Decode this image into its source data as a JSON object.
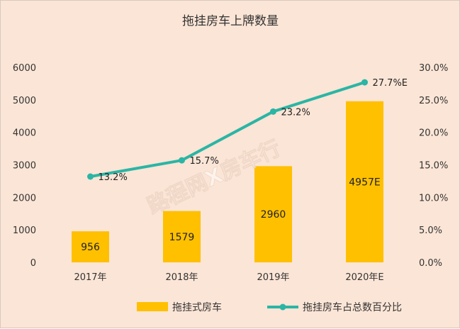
{
  "chart_data": {
    "type": "bar+line",
    "title": "拖挂房车上牌数量",
    "categories": [
      "2017年",
      "2018年",
      "2019年",
      "2020年E"
    ],
    "series": [
      {
        "name": "拖挂式房车",
        "type": "bar",
        "axis": "left",
        "values": [
          956,
          1579,
          2960,
          4957
        ],
        "labels": [
          "956",
          "1579",
          "2960",
          "4957E"
        ],
        "color": "#ffc000"
      },
      {
        "name": "拖挂房车占总数百分比",
        "type": "line",
        "axis": "right",
        "values": [
          13.2,
          15.7,
          23.2,
          27.7
        ],
        "labels": [
          "13.2%",
          "15.7%",
          "23.2%",
          "27.7%E"
        ],
        "color": "#2bb5a5"
      }
    ],
    "y_left": {
      "range": [
        0,
        6000
      ],
      "ticks": [
        0,
        1000,
        2000,
        3000,
        4000,
        5000,
        6000
      ],
      "tick_labels": [
        "0",
        "1000",
        "2000",
        "3000",
        "4000",
        "5000",
        "6000"
      ]
    },
    "y_right": {
      "range": [
        0,
        30
      ],
      "ticks": [
        0,
        5,
        10,
        15,
        20,
        25,
        30
      ],
      "tick_labels": [
        "0.0%",
        "5.0%",
        "10.0%",
        "15.0%",
        "20.0%",
        "25.0%",
        "30.0%"
      ]
    },
    "grid": false,
    "legend_position": "bottom",
    "watermark": "路程网X房车行"
  }
}
